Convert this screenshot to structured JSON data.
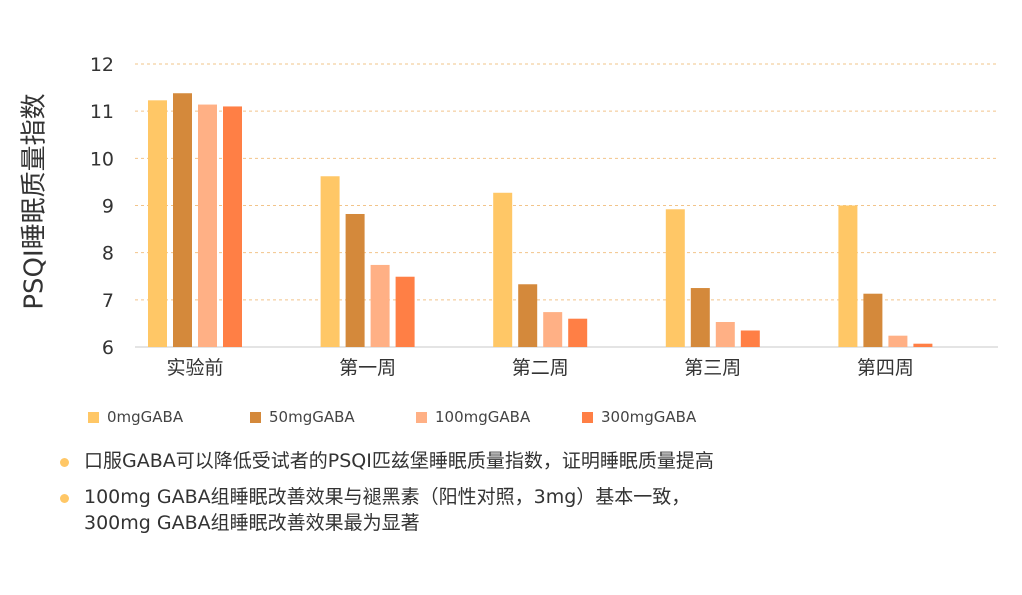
{
  "chart_data": {
    "type": "bar",
    "ylabel": "PSQI睡眠质量指数",
    "xlabel": "",
    "ylim": [
      6,
      12
    ],
    "yticks": [
      6,
      7,
      8,
      9,
      10,
      11,
      12
    ],
    "categories": [
      "实验前",
      "第一周",
      "第二周",
      "第三周",
      "第四周"
    ],
    "series": [
      {
        "name": "0mgGABA",
        "color": "#FFC766",
        "values": [
          11.23,
          9.62,
          9.27,
          8.92,
          9.0
        ]
      },
      {
        "name": "50mgGABA",
        "color": "#D4893B",
        "values": [
          11.38,
          8.82,
          7.33,
          7.25,
          7.13
        ]
      },
      {
        "name": "100mgGABA",
        "color": "#FFB085",
        "values": [
          11.14,
          7.74,
          6.74,
          6.53,
          6.24
        ]
      },
      {
        "name": "300mgGABA",
        "color": "#FF7F45",
        "values": [
          11.1,
          7.49,
          6.6,
          6.35,
          6.07
        ]
      }
    ],
    "grid": true,
    "legend_position": "bottom"
  },
  "notes": {
    "bullet_color": "#FFC766",
    "items": [
      "口服GABA可以降低受试者的PSQI匹兹堡睡眠质量指数，证明睡眠质量提高",
      "100mg GABA组睡眠改善效果与褪黑素（阳性对照，3mg）基本一致，\n300mg GABA组睡眠改善效果最为显著"
    ]
  }
}
